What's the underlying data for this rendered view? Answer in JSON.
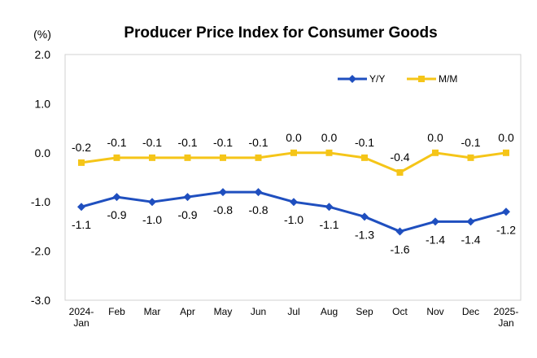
{
  "chart_data": {
    "type": "line",
    "title": "Producer Price Index for Consumer Goods",
    "unit_label": "(%)",
    "categories": [
      [
        "2024-",
        "Jan"
      ],
      [
        "Feb"
      ],
      [
        "Mar"
      ],
      [
        "Apr"
      ],
      [
        "May"
      ],
      [
        "Jun"
      ],
      [
        "Jul"
      ],
      [
        "Aug"
      ],
      [
        "Sep"
      ],
      [
        "Oct"
      ],
      [
        "Nov"
      ],
      [
        "Dec"
      ],
      [
        "2025-",
        "Jan"
      ]
    ],
    "ylim": [
      -3.0,
      2.0
    ],
    "yticks": [
      2.0,
      1.0,
      0.0,
      -1.0,
      -2.0,
      -3.0
    ],
    "ytick_labels": [
      "2.0",
      "1.0",
      "0.0",
      "-1.0",
      "-2.0",
      "-3.0"
    ],
    "grid": false,
    "legend_position": "top-right",
    "series": [
      {
        "name": "Y/Y",
        "color": "#1f4fbf",
        "marker": "diamond",
        "label_position": "below",
        "values": [
          -1.1,
          -0.9,
          -1.0,
          -0.9,
          -0.8,
          -0.8,
          -1.0,
          -1.1,
          -1.3,
          -1.6,
          -1.4,
          -1.4,
          -1.2
        ],
        "labels": [
          "-1.1",
          "-0.9",
          "-1.0",
          "-0.9",
          "-0.8",
          "-0.8",
          "-1.0",
          "-1.1",
          "-1.3",
          "-1.6",
          "-1.4",
          "-1.4",
          "-1.2"
        ]
      },
      {
        "name": "M/M",
        "color": "#f5c518",
        "marker": "square",
        "label_position": "above",
        "values": [
          -0.2,
          -0.1,
          -0.1,
          -0.1,
          -0.1,
          -0.1,
          0.0,
          0.0,
          -0.1,
          -0.4,
          0.0,
          -0.1,
          0.0
        ],
        "labels": [
          "-0.2",
          "-0.1",
          "-0.1",
          "-0.1",
          "-0.1",
          "-0.1",
          "0.0",
          "0.0",
          "-0.1",
          "-0.4",
          "0.0",
          "-0.1",
          "0.0"
        ]
      }
    ]
  }
}
